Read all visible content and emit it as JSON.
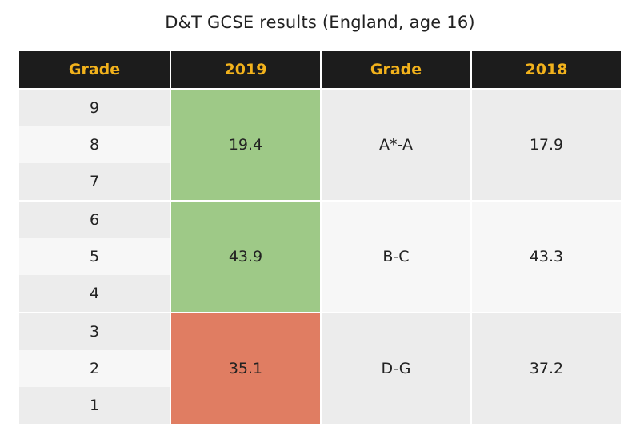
{
  "title": "D&T GCSE results (England, age 16)",
  "colors": {
    "header_bg": "#1c1c1c",
    "header_text": "#f2b21c",
    "row_light": "#f7f7f7",
    "row_dark": "#ececec",
    "green": "#9ec987",
    "red": "#e07d62"
  },
  "chart_data": {
    "type": "table",
    "title": "D&T GCSE results (England, age 16)",
    "columns": [
      "Grade",
      "2019",
      "Grade",
      "2018"
    ],
    "rows": [
      {
        "grades_2019": [
          "9",
          "8",
          "7"
        ],
        "value_2019": 19.4,
        "highlight_2019": "green",
        "grade_2018": "A*-A",
        "value_2018": 17.9
      },
      {
        "grades_2019": [
          "6",
          "5",
          "4"
        ],
        "value_2019": 43.9,
        "highlight_2019": "green",
        "grade_2018": "B-C",
        "value_2018": 43.3
      },
      {
        "grades_2019": [
          "3",
          "2",
          "1"
        ],
        "value_2019": 35.1,
        "highlight_2019": "red",
        "grade_2018": "D-G",
        "value_2018": 37.2
      }
    ]
  }
}
